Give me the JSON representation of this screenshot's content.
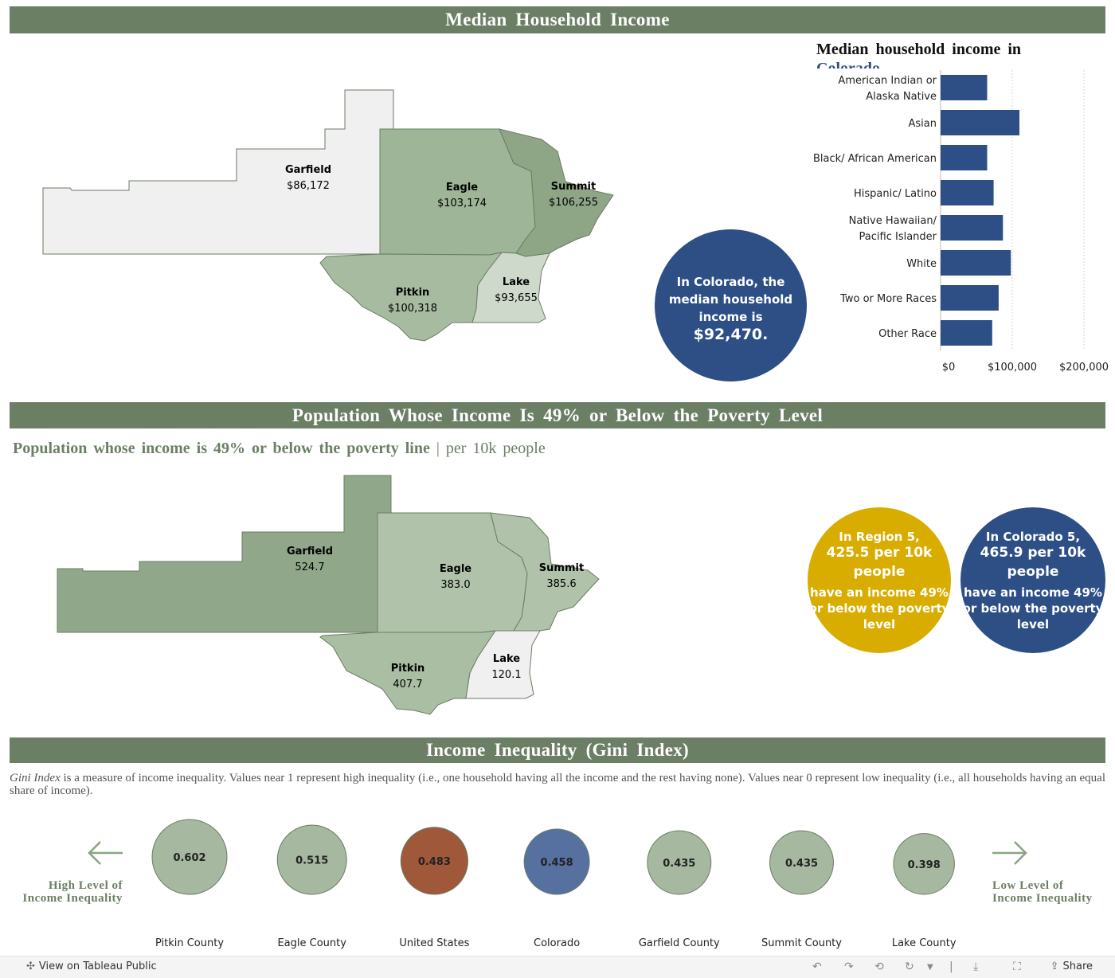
{
  "sections": {
    "income_title": "Median Household Income",
    "poverty_title": "Population Whose Income Is 49% or Below the Poverty Level",
    "gini_title": "Income Inequality (Gini Index)"
  },
  "income_map": {
    "counties": [
      {
        "name": "Garfield",
        "value": "$86,172"
      },
      {
        "name": "Eagle",
        "value": "$103,174"
      },
      {
        "name": "Summit",
        "value": "$106,255"
      },
      {
        "name": "Pitkin",
        "value": "$100,318"
      },
      {
        "name": "Lake",
        "value": "$93,655"
      }
    ],
    "colors": {
      "Garfield": "#f0f0f0",
      "Eagle": "#9eb597",
      "Summit": "#8ea686",
      "Pitkin": "#a6bb9f",
      "Lake": "#cfd9cb"
    }
  },
  "colorado_income": {
    "text": "In Colorado, the median household income is",
    "value": "$92,470",
    "period": "."
  },
  "bar_chart": {
    "title_prefix": "Median household income in",
    "title_place": "Colorado"
  },
  "chart_data": {
    "type": "bar",
    "orientation": "horizontal",
    "categories": [
      "American Indian or Alaska Native",
      "Asian",
      "Black/ African American",
      "Hispanic/ Latino",
      "Native Hawaiian/ Pacific Islander",
      "White",
      "Two or More Races",
      "Other Race"
    ],
    "category_lines": [
      [
        "American Indian or",
        "Alaska Native"
      ],
      [
        "Asian"
      ],
      [
        "Black/ African American"
      ],
      [
        "Hispanic/ Latino"
      ],
      [
        "Native Hawaiian/",
        "Pacific Islander"
      ],
      [
        "White"
      ],
      [
        "Two or More Races"
      ],
      [
        "Other Race"
      ]
    ],
    "values": [
      65000,
      110000,
      65000,
      74000,
      87000,
      98000,
      81000,
      72000
    ],
    "xlim": [
      0,
      200000
    ],
    "tick_values": [
      0,
      100000,
      200000
    ],
    "tick_labels": [
      "$0",
      "$100,000",
      "$200,000"
    ],
    "bar_color": "#2d4f86",
    "grid": true
  },
  "poverty": {
    "subtitle_bold": "Population whose income is 49% or below the poverty line",
    "subtitle_sep": " | ",
    "subtitle_rest": "per 10k people",
    "counties": [
      {
        "name": "Garfield",
        "value": "524.7"
      },
      {
        "name": "Eagle",
        "value": "383.0"
      },
      {
        "name": "Summit",
        "value": "385.6"
      },
      {
        "name": "Pitkin",
        "value": "407.7"
      },
      {
        "name": "Lake",
        "value": "120.1"
      }
    ],
    "colors": {
      "Garfield": "#90a889",
      "Eagle": "#b0c3aa",
      "Summit": "#b0c3aa",
      "Pitkin": "#aabea3",
      "Lake": "#f0f0f0"
    },
    "region": {
      "line1": "In Region 5,",
      "rate": "425.5 per 10k",
      "people": "people",
      "rest": "have an income 49% or below the poverty level",
      "color": "#d9ac00"
    },
    "colorado": {
      "line1": "In Colorado 5,",
      "rate": "465.9 per 10k",
      "people": "people",
      "rest": "have an income 49% or below the poverty level",
      "color": "#2d4f86"
    }
  },
  "gini": {
    "desc_term": "Gini Index",
    "desc_rest": " is a measure of income inequality. Values near 1 represent high inequality (i.e., one household having all the income and the rest having none). Values near 0 represent low inequality (i.e., all households having an equal share of income).",
    "high_label": "High Level of Income Inequality",
    "low_label": "Low Level of Income Inequality",
    "items": [
      {
        "name": "Pitkin County",
        "value": 0.602,
        "label": "0.602",
        "color": "#a6b89f"
      },
      {
        "name": "Eagle County",
        "value": 0.515,
        "label": "0.515",
        "color": "#a6b89f"
      },
      {
        "name": "United States",
        "value": 0.483,
        "label": "0.483",
        "color": "#a0583a"
      },
      {
        "name": "Colorado",
        "value": 0.458,
        "label": "0.458",
        "color": "#5671a0"
      },
      {
        "name": "Garfield County",
        "value": 0.435,
        "label": "0.435",
        "color": "#a6b89f"
      },
      {
        "name": "Summit County",
        "value": 0.435,
        "label": "0.435",
        "color": "#a6b89f"
      },
      {
        "name": "Lake County",
        "value": 0.398,
        "label": "0.398",
        "color": "#a6b89f"
      }
    ]
  },
  "footer": {
    "view_link": "View on Tableau Public",
    "share": "Share"
  }
}
